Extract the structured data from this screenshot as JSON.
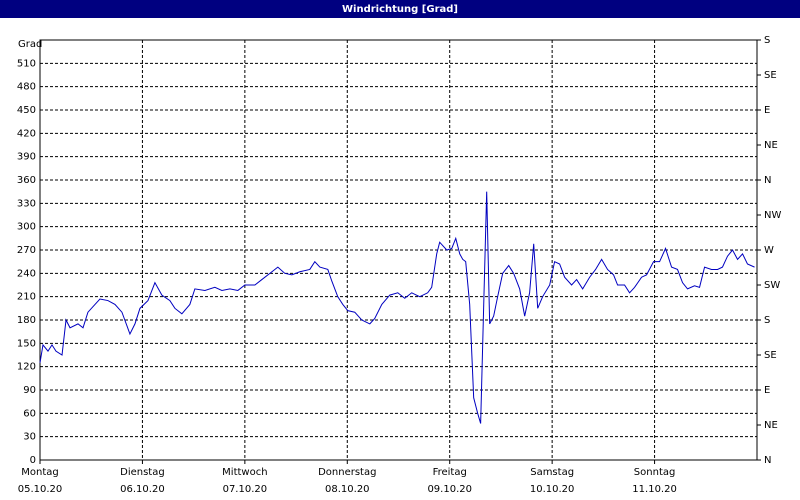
{
  "chart_data": {
    "type": "line",
    "title": "Windrichtung [Grad]",
    "y_label": "Grad",
    "x": [
      0,
      0.029,
      0.078,
      0.117,
      0.156,
      0.215,
      0.254,
      0.293,
      0.371,
      0.42,
      0.468,
      0.537,
      0.585,
      0.663,
      0.732,
      0.8,
      0.878,
      0.927,
      0.976,
      1.054,
      1.122,
      1.19,
      1.268,
      1.317,
      1.385,
      1.463,
      1.512,
      1.61,
      1.707,
      1.776,
      1.854,
      1.932,
      2,
      2.098,
      2.166,
      2.244,
      2.322,
      2.39,
      2.459,
      2.537,
      2.634,
      2.683,
      2.732,
      2.81,
      2.849,
      2.907,
      2.956,
      3.005,
      3.073,
      3.141,
      3.22,
      3.268,
      3.337,
      3.415,
      3.493,
      3.561,
      3.629,
      3.707,
      3.785,
      3.824,
      3.873,
      3.902,
      3.971,
      4.02,
      4.059,
      4.098,
      4.127,
      4.156,
      4.195,
      4.234,
      4.273,
      4.302,
      4.332,
      4.361,
      4.39,
      4.429,
      4.468,
      4.517,
      4.576,
      4.624,
      4.683,
      4.732,
      4.78,
      4.82,
      4.859,
      4.907,
      4.976,
      5.024,
      5.073,
      5.122,
      5.19,
      5.239,
      5.298,
      5.366,
      5.424,
      5.483,
      5.541,
      5.6,
      5.639,
      5.707,
      5.756,
      5.805,
      5.873,
      5.922,
      5.99,
      6.049,
      6.107,
      6.166,
      6.224,
      6.273,
      6.322,
      6.39,
      6.439,
      6.488,
      6.556,
      6.615,
      6.663,
      6.712,
      6.761,
      6.81,
      6.859,
      6.907,
      6.976
    ],
    "series": [
      {
        "name": "Windrichtung",
        "color": "#0000c0",
        "values": [
          125,
          148,
          140,
          148,
          140,
          135,
          180,
          170,
          175,
          170,
          190,
          200,
          207,
          205,
          200,
          190,
          162,
          175,
          195,
          205,
          228,
          212,
          205,
          195,
          188,
          200,
          220,
          218,
          222,
          218,
          220,
          218,
          225,
          225,
          232,
          240,
          248,
          240,
          238,
          242,
          245,
          255,
          248,
          245,
          230,
          210,
          200,
          192,
          190,
          180,
          175,
          182,
          200,
          212,
          215,
          208,
          215,
          210,
          215,
          222,
          265,
          280,
          270,
          272,
          285,
          265,
          258,
          255,
          200,
          80,
          60,
          47,
          200,
          345,
          175,
          185,
          210,
          240,
          250,
          240,
          220,
          185,
          215,
          278,
          195,
          210,
          225,
          255,
          252,
          235,
          225,
          232,
          220,
          235,
          245,
          258,
          245,
          238,
          225,
          225,
          215,
          222,
          235,
          238,
          255,
          255,
          272,
          248,
          245,
          228,
          220,
          224,
          222,
          248,
          245,
          245,
          248,
          262,
          270,
          258,
          265,
          252,
          248
        ]
      }
    ],
    "xlim": [
      0,
      7
    ],
    "xticks": [
      {
        "value": 0,
        "label": "Montag\n05.10.20"
      },
      {
        "value": 1,
        "label": "Dienstag\n06.10.20"
      },
      {
        "value": 2,
        "label": "Mittwoch\n07.10.20"
      },
      {
        "value": 3,
        "label": "Donnerstag\n08.10.20"
      },
      {
        "value": 4,
        "label": "Freitag\n09.10.20"
      },
      {
        "value": 5,
        "label": "Samstag\n10.10.20"
      },
      {
        "value": 6,
        "label": "Sonntag\n11.10.20"
      }
    ],
    "ylim": [
      0,
      540
    ],
    "yticks": [
      0,
      30,
      60,
      90,
      120,
      150,
      180,
      210,
      240,
      270,
      300,
      330,
      360,
      390,
      420,
      450,
      480,
      510
    ],
    "y2lim": [
      0,
      540
    ],
    "y2ticks": [
      {
        "value": 0,
        "label": "N"
      },
      {
        "value": 45,
        "label": "NE"
      },
      {
        "value": 90,
        "label": "E"
      },
      {
        "value": 135,
        "label": "SE"
      },
      {
        "value": 180,
        "label": "S"
      },
      {
        "value": 225,
        "label": "SW"
      },
      {
        "value": 270,
        "label": "W"
      },
      {
        "value": 315,
        "label": "NW"
      },
      {
        "value": 360,
        "label": "N"
      },
      {
        "value": 405,
        "label": "NE"
      },
      {
        "value": 450,
        "label": "E"
      },
      {
        "value": 495,
        "label": "SE"
      },
      {
        "value": 540,
        "label": "S"
      }
    ],
    "grid": true
  }
}
